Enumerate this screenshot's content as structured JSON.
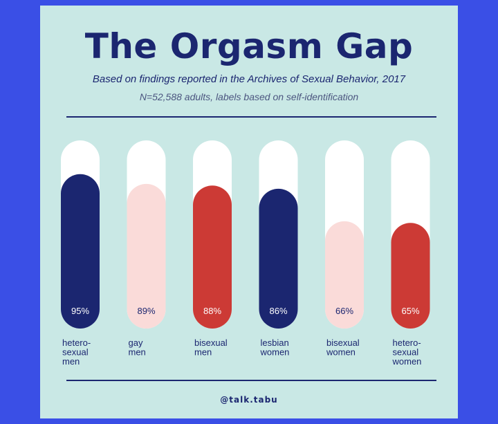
{
  "header": {
    "title": "The Orgasm Gap",
    "subtitle": "Based on findings reported in the Archives of Sexual Behavior, 2017",
    "note": "N=52,588 adults, labels based on self-identification"
  },
  "footer": {
    "handle": "@talk.tabu"
  },
  "colors": {
    "background": "#c9e8e5",
    "frame": "#3a4fe6",
    "navy": "#1b2670",
    "red": "#cc3a35",
    "pink": "#fadbd9",
    "track": "#ffffff"
  },
  "chart_data": {
    "type": "bar",
    "categories": [
      [
        "hetero-",
        "sexual",
        "men"
      ],
      [
        "gay",
        "men"
      ],
      [
        "bisexual",
        "men"
      ],
      [
        "lesbian",
        "women"
      ],
      [
        "bisexual",
        "women"
      ],
      [
        "hetero-",
        "sexual",
        "women"
      ]
    ],
    "values": [
      95,
      89,
      88,
      86,
      66,
      65
    ],
    "value_labels": [
      "95%",
      "89%",
      "88%",
      "86%",
      "66%",
      "65%"
    ],
    "bar_colors": [
      "navy",
      "pink",
      "red",
      "navy",
      "pink",
      "red"
    ],
    "ylim": [
      0,
      100
    ],
    "grid": false
  }
}
